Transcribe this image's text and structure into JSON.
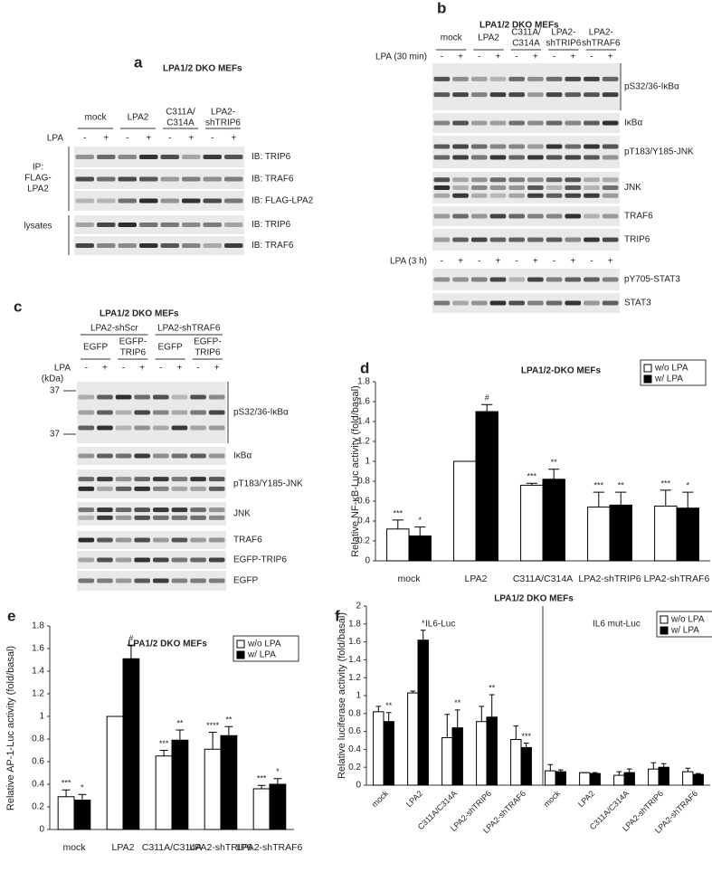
{
  "blot_a": {
    "panel": "a",
    "title": "LPA1/2 DKO MEFs",
    "groups": [
      [
        "mock"
      ],
      [
        "LPA2"
      ],
      [
        "C311A/",
        "C314A"
      ],
      [
        "LPA2-",
        "shTRIP6"
      ]
    ],
    "treatment": "LPA",
    "signs": [
      "-",
      "+"
    ],
    "side_labels": [
      [
        "IP:",
        "FLAG-",
        "LPA2"
      ],
      [
        "lysates"
      ]
    ],
    "rows": [
      "IB: TRIP6",
      "IB: TRAF6",
      "IB: FLAG-LPA2",
      "IB: TRIP6",
      "IB: TRAF6"
    ]
  },
  "blot_b": {
    "panel": "b",
    "title": "LPA1/2 DKO MEFs",
    "groups": [
      [
        "mock"
      ],
      [
        "LPA2"
      ],
      [
        "C311A/",
        "C314A"
      ],
      [
        "LPA2-",
        "shTRIP6"
      ],
      [
        "LPA2-",
        "shTRAF6"
      ]
    ],
    "treatments": [
      "LPA (30 min)",
      "LPA (3 h)"
    ],
    "signs": [
      "-",
      "+"
    ],
    "rows": [
      "pS32/36-IκBα",
      "IκBα",
      "pT183/Y185-JNK",
      "JNK",
      "TRAF6",
      "TRIP6",
      "pY705-STAT3",
      "STAT3"
    ]
  },
  "blot_c": {
    "panel": "c",
    "title": "LPA1/2 DKO MEFs",
    "groups": [
      "LPA2-shScr",
      "LPA2-shTRAF6"
    ],
    "subgroups": [
      [
        "EGFP"
      ],
      [
        "EGFP-",
        "TRIP6"
      ]
    ],
    "treatment": "LPA",
    "signs": [
      "-",
      "+"
    ],
    "marker_unit": "(kDa)",
    "markers": [
      "37",
      "37"
    ],
    "rows": [
      "pS32/36-IκBα",
      "IκBα",
      "pT183/Y185-JNK",
      "JNK",
      "TRAF6",
      "EGFP-TRIP6",
      "EGFP"
    ]
  },
  "chart_data": [
    {
      "type": "bar",
      "panel": "d",
      "title": "LPA1/2-DKO MEFs",
      "ylabel": "Relative NF-κB-Luc activity (fold/basal)",
      "categories": [
        "mock",
        "LPA2",
        "C311A/C314A",
        "LPA2-shTRIP6",
        "LPA2-shTRAF6"
      ],
      "series": [
        {
          "name": "w/o LPA",
          "color": "#ffffff",
          "values": [
            0.32,
            1.0,
            0.76,
            0.54,
            0.55
          ],
          "errors": [
            0.09,
            0,
            0.02,
            0.15,
            0.16
          ],
          "significance": [
            "***",
            null,
            "***",
            "***",
            "***"
          ]
        },
        {
          "name": "w/ LPA",
          "color": "#000000",
          "values": [
            0.25,
            1.5,
            0.82,
            0.56,
            0.53
          ],
          "errors": [
            0.09,
            0.07,
            0.1,
            0.13,
            0.16
          ],
          "significance": [
            "*",
            "#",
            "**",
            "**",
            "*"
          ]
        }
      ],
      "ylim": [
        0,
        1.8
      ],
      "yticks": [
        0,
        0.2,
        0.4,
        0.6,
        0.8,
        1,
        1.2,
        1.4,
        1.6,
        1.8
      ],
      "legend": "upper right"
    },
    {
      "type": "bar",
      "panel": "e",
      "title": "LPA1/2 DKO MEFs",
      "ylabel": "Relative AP-1-Luc activity (fold/basal)",
      "categories": [
        "mock",
        "LPA2",
        "C311A/C314A",
        "LPA2-shTRIP6",
        "LPA2-shTRAF6"
      ],
      "series": [
        {
          "name": "w/o LPA",
          "color": "#ffffff",
          "values": [
            0.29,
            1.0,
            0.65,
            0.71,
            0.36
          ],
          "errors": [
            0.06,
            0,
            0.05,
            0.15,
            0.03
          ],
          "significance": [
            "***",
            null,
            "***",
            "****",
            "***"
          ]
        },
        {
          "name": "w/ LPA",
          "color": "#000000",
          "values": [
            0.26,
            1.51,
            0.79,
            0.83,
            0.4
          ],
          "errors": [
            0.05,
            0.12,
            0.09,
            0.08,
            0.05
          ],
          "significance": [
            "*",
            "#",
            "**",
            "**",
            "*"
          ]
        }
      ],
      "ylim": [
        0,
        1.8
      ],
      "yticks": [
        0,
        0.2,
        0.4,
        0.6,
        0.8,
        1,
        1.2,
        1.4,
        1.6,
        1.8
      ],
      "legend": "upper right"
    },
    {
      "type": "bar",
      "panel": "f",
      "title": "LPA1/2 DKO MEFs",
      "ylabel": "Relative luciferase activity (fold/basal)",
      "annotations": [
        "IL6-Luc",
        "IL6 mut-Luc"
      ],
      "categories": [
        "mock",
        "LPA2",
        "C311A/C314A",
        "LPA2-shTRIP6",
        "LPA2-shTRAF6",
        "mock",
        "LPA2",
        "C311A/C314A",
        "LPA2-shTRIP6",
        "LPA2-shTRAF6"
      ],
      "series": [
        {
          "name": "w/o LPA",
          "color": "#ffffff",
          "values": [
            0.82,
            1.03,
            0.53,
            0.71,
            0.51,
            0.16,
            0.14,
            0.11,
            0.18,
            0.15
          ],
          "errors": [
            0.06,
            0.02,
            0.26,
            0.17,
            0.15,
            0.07,
            0,
            0.04,
            0.07,
            0.04
          ],
          "significance": [
            null,
            null,
            null,
            null,
            null,
            null,
            null,
            null,
            null,
            null
          ]
        },
        {
          "name": "w/ LPA",
          "color": "#000000",
          "values": [
            0.71,
            1.62,
            0.64,
            0.76,
            0.42,
            0.15,
            0.13,
            0.14,
            0.2,
            0.12
          ],
          "errors": [
            0.1,
            0.11,
            0.2,
            0.25,
            0.05,
            0.02,
            0.01,
            0.04,
            0.04,
            0.01
          ],
          "significance": [
            "**",
            "*",
            "**",
            "**",
            "***",
            null,
            null,
            null,
            null,
            null
          ]
        }
      ],
      "ylim": [
        0,
        2
      ],
      "yticks": [
        0,
        0.2,
        0.4,
        0.6,
        0.8,
        1,
        1.2,
        1.4,
        1.6,
        1.8,
        2
      ],
      "legend": "upper right",
      "xtick_rotation": -45
    }
  ]
}
